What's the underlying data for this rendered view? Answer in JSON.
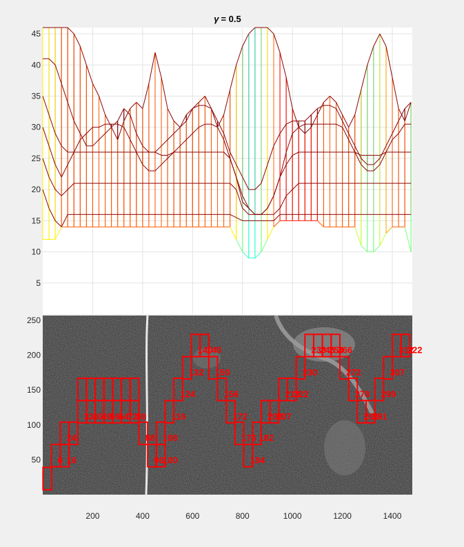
{
  "chart_data": [
    {
      "type": "surface-mesh",
      "title": "γ = 0.5",
      "title_symbol": "γ",
      "title_value": "= 0.5",
      "y_ticks": [
        5,
        10,
        15,
        20,
        25,
        30,
        35,
        40,
        45
      ],
      "ylim": [
        0,
        46
      ],
      "xlim": [
        0,
        1480
      ],
      "grid": true,
      "colormap": "jet",
      "column_x": [
        0,
        25,
        50,
        75,
        100,
        125,
        150,
        175,
        200,
        225,
        250,
        275,
        300,
        325,
        350,
        375,
        400,
        425,
        450,
        475,
        500,
        525,
        550,
        575,
        600,
        625,
        650,
        675,
        700,
        725,
        750,
        775,
        800,
        825,
        850,
        875,
        900,
        925,
        950,
        975,
        1000,
        1025,
        1050,
        1075,
        1100,
        1125,
        1150,
        1175,
        1200,
        1225,
        1250,
        1275,
        1300,
        1325,
        1350,
        1375,
        1400,
        1425,
        1450,
        1475
      ],
      "series": [
        {
          "name": "row 1",
          "values": [
            20,
            17,
            15,
            14,
            16,
            16,
            16,
            16,
            16,
            16,
            16,
            16,
            16,
            16,
            16,
            16,
            16,
            16,
            16,
            16,
            16,
            16,
            16,
            16,
            16,
            16,
            16,
            16,
            16,
            16,
            16,
            15.5,
            15,
            15,
            15,
            15,
            15,
            15,
            16,
            16,
            16,
            16,
            16,
            16,
            16,
            16,
            16,
            16,
            16,
            16,
            16,
            16,
            16,
            16,
            16,
            16,
            16,
            16,
            16,
            16
          ]
        },
        {
          "name": "row 2",
          "values": [
            25,
            22,
            20,
            19,
            20,
            21,
            21,
            21,
            21,
            21,
            21,
            21,
            21,
            21,
            21,
            21,
            21,
            21,
            21,
            21,
            21,
            21,
            21,
            21,
            21,
            21,
            21,
            21,
            21,
            21,
            21,
            20,
            17,
            16,
            16,
            16,
            16,
            16,
            17,
            19,
            20,
            21,
            21,
            21,
            21,
            21,
            21,
            21,
            21,
            21,
            21,
            21,
            21,
            21,
            21,
            21,
            21,
            21,
            21,
            21
          ]
        },
        {
          "name": "row 3",
          "values": [
            30,
            27,
            24,
            22,
            24,
            26,
            26,
            26,
            26,
            26,
            26,
            26,
            26,
            26,
            26,
            26,
            26,
            26,
            26,
            25.5,
            25.5,
            26,
            26,
            26,
            26,
            26,
            26,
            26,
            26,
            26,
            25,
            22,
            18,
            17,
            16,
            16,
            17,
            19,
            22,
            24,
            25.5,
            26,
            26,
            26,
            26,
            26,
            26,
            26,
            26,
            26,
            26,
            25.5,
            25.5,
            25.5,
            25.5,
            26,
            26,
            26,
            26,
            26
          ]
        },
        {
          "name": "row 4",
          "values": [
            35,
            32,
            29,
            27,
            26,
            26,
            28,
            29,
            30,
            30,
            30.5,
            30.5,
            30.5,
            30,
            28,
            26,
            24,
            23,
            23,
            24,
            25,
            26,
            27,
            28,
            29,
            30,
            30.5,
            30.5,
            30,
            28,
            25,
            22,
            19,
            17,
            16,
            16,
            17,
            19,
            22,
            26,
            29,
            30,
            30.5,
            30.5,
            30.5,
            30.5,
            30.5,
            30.5,
            30,
            28,
            26,
            24,
            23,
            23,
            24,
            26,
            28,
            29,
            30.5,
            30.5
          ]
        },
        {
          "name": "row 5",
          "values": [
            41,
            41,
            40,
            37,
            34,
            31,
            29,
            27,
            27,
            28,
            29,
            30,
            31,
            33,
            32,
            29,
            27,
            26,
            26,
            27,
            28,
            29,
            30,
            32,
            33,
            33.5,
            33.5,
            33,
            31,
            29,
            26,
            24,
            22,
            20,
            20,
            21,
            24,
            27,
            29,
            30.5,
            31,
            31,
            31,
            32,
            33,
            33.5,
            33.5,
            33,
            31,
            29,
            27,
            25,
            24,
            24,
            25,
            27,
            29,
            31,
            33,
            34
          ]
        },
        {
          "name": "row 6",
          "values": [
            46,
            46,
            46,
            46,
            46,
            45,
            43,
            40,
            37,
            35,
            32,
            30,
            28,
            31,
            33,
            34,
            33,
            37,
            42,
            38,
            33,
            31,
            30,
            31,
            33,
            34,
            35,
            33,
            30,
            32,
            36,
            40,
            43,
            45,
            46,
            46,
            46,
            45,
            42,
            38,
            33,
            30,
            29,
            30,
            32,
            34,
            35,
            34,
            32,
            30,
            32,
            36,
            40,
            43,
            45,
            43,
            38,
            33,
            31,
            34
          ]
        },
        {
          "name": "row 7",
          "values": [
            12,
            12,
            12,
            14,
            14,
            14,
            14,
            14,
            14,
            14,
            14,
            14,
            14,
            14,
            14,
            14,
            14,
            14,
            14,
            14,
            14,
            14,
            14,
            14,
            14,
            14,
            14,
            14,
            14,
            14,
            14,
            12,
            10,
            9,
            9,
            10,
            12,
            14,
            15,
            15,
            15,
            15,
            15,
            15,
            15,
            14,
            14,
            14,
            14,
            14,
            14,
            11,
            10,
            10,
            11,
            13,
            14,
            14,
            14,
            10
          ]
        }
      ]
    },
    {
      "type": "image-with-boxes",
      "y_ticks": [
        50,
        100,
        150,
        200,
        250
      ],
      "x_ticks": [
        200,
        400,
        600,
        800,
        1000,
        1200,
        1400
      ],
      "xlim": [
        0,
        1480
      ],
      "ylim": [
        0,
        257
      ],
      "box_width": 35,
      "box_height": 32,
      "boxes": [
        {
          "x": 1,
          "y": 7,
          "label": ""
        },
        {
          "x": 35,
          "y": 40,
          "label": "6"
        },
        {
          "x": 70,
          "y": 40,
          "label": "16"
        },
        {
          "x": 70,
          "y": 72,
          "label": "24"
        },
        {
          "x": 105,
          "y": 72,
          "label": ""
        },
        {
          "x": 140,
          "y": 103,
          "label": "32"
        },
        {
          "x": 175,
          "y": 103,
          "label": "40"
        },
        {
          "x": 210,
          "y": 103,
          "label": "48"
        },
        {
          "x": 245,
          "y": 103,
          "label": "56"
        },
        {
          "x": 280,
          "y": 103,
          "label": "64"
        },
        {
          "x": 315,
          "y": 103,
          "label": "72"
        },
        {
          "x": 350,
          "y": 103,
          "label": "80"
        },
        {
          "x": 140,
          "y": 135,
          "label": ""
        },
        {
          "x": 175,
          "y": 135,
          "label": ""
        },
        {
          "x": 210,
          "y": 135,
          "label": ""
        },
        {
          "x": 245,
          "y": 135,
          "label": ""
        },
        {
          "x": 280,
          "y": 135,
          "label": ""
        },
        {
          "x": 315,
          "y": 135,
          "label": ""
        },
        {
          "x": 350,
          "y": 135,
          "label": ""
        },
        {
          "x": 175,
          "y": 135,
          "label": ""
        },
        {
          "x": 210,
          "y": 135,
          "label": ""
        },
        {
          "x": 210,
          "y": 135,
          "label": ""
        },
        {
          "x": 175,
          "y": 135,
          "label": ""
        },
        {
          "x": 245,
          "y": 135,
          "label": ""
        },
        {
          "x": 315,
          "y": 135,
          "label": ""
        },
        {
          "x": 315,
          "y": 135,
          "label": ""
        },
        {
          "x": 280,
          "y": 135,
          "label": ""
        },
        {
          "x": 315,
          "y": 135,
          "label": ""
        },
        {
          "x": 385,
          "y": 72,
          "label": "88"
        },
        {
          "x": 420,
          "y": 40,
          "label": "96"
        },
        {
          "x": 455,
          "y": 40,
          "label": "100"
        },
        {
          "x": 455,
          "y": 72,
          "label": "108"
        },
        {
          "x": 490,
          "y": 103,
          "label": "116"
        },
        {
          "x": 525,
          "y": 135,
          "label": "124"
        },
        {
          "x": 560,
          "y": 166,
          "label": "132"
        },
        {
          "x": 595,
          "y": 198,
          "label": "140"
        },
        {
          "x": 630,
          "y": 198,
          "label": "148"
        },
        {
          "x": 665,
          "y": 166,
          "label": "150"
        },
        {
          "x": 700,
          "y": 135,
          "label": "156"
        },
        {
          "x": 735,
          "y": 103,
          "label": "172"
        },
        {
          "x": 770,
          "y": 72,
          "label": "176"
        },
        {
          "x": 805,
          "y": 40,
          "label": "184"
        },
        {
          "x": 840,
          "y": 72,
          "label": "182"
        },
        {
          "x": 875,
          "y": 103,
          "label": "200"
        },
        {
          "x": 910,
          "y": 103,
          "label": "207"
        },
        {
          "x": 945,
          "y": 135,
          "label": "213"
        },
        {
          "x": 980,
          "y": 135,
          "label": "222"
        },
        {
          "x": 1015,
          "y": 166,
          "label": "230"
        },
        {
          "x": 1050,
          "y": 198,
          "label": "238"
        },
        {
          "x": 1085,
          "y": 198,
          "label": "246"
        },
        {
          "x": 1120,
          "y": 198,
          "label": "254"
        },
        {
          "x": 1155,
          "y": 198,
          "label": "266"
        },
        {
          "x": 1190,
          "y": 166,
          "label": "272"
        },
        {
          "x": 1225,
          "y": 135,
          "label": "278"
        },
        {
          "x": 1260,
          "y": 103,
          "label": "286"
        },
        {
          "x": 1295,
          "y": 103,
          "label": "291"
        },
        {
          "x": 1330,
          "y": 135,
          "label": "299"
        },
        {
          "x": 1365,
          "y": 166,
          "label": "307"
        },
        {
          "x": 1400,
          "y": 198,
          "label": "312"
        },
        {
          "x": 1435,
          "y": 198,
          "label": "322"
        }
      ]
    }
  ]
}
